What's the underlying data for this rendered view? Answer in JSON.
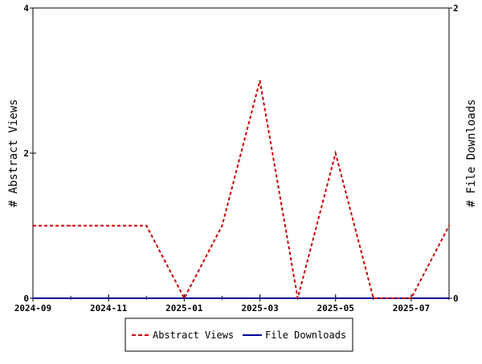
{
  "chart_data": {
    "type": "line",
    "title": "",
    "x": [
      "2024-09",
      "2024-10",
      "2024-11",
      "2024-12",
      "2025-01",
      "2025-02",
      "2025-03",
      "2025-04",
      "2025-05",
      "2025-06",
      "2025-07",
      "2025-08"
    ],
    "x_tick_labels": [
      "2024-09",
      "2024-11",
      "2025-01",
      "2025-03",
      "2025-05",
      "2025-07"
    ],
    "xlim": [
      "2024-09",
      "2025-08"
    ],
    "ylabel_left": "# Abstract Views",
    "ylabel_right": "# File Downloads",
    "ylim_left": [
      0,
      4
    ],
    "ylim_right": [
      0,
      2
    ],
    "y_ticks_left": [
      "0",
      "2",
      "4"
    ],
    "y_ticks_right": [
      "0",
      "2"
    ],
    "grid": false,
    "legend_position": "bottom",
    "series": [
      {
        "name": "Abstract Views",
        "axis": "left",
        "style": "dashed",
        "color": "#cc0000",
        "values": [
          1,
          1,
          1,
          1,
          0,
          1,
          3,
          0,
          2,
          0,
          0,
          1
        ]
      },
      {
        "name": "File Downloads",
        "axis": "right",
        "style": "solid",
        "color": "#000099",
        "values": [
          0,
          0,
          0,
          0,
          0,
          0,
          0,
          0,
          0,
          0,
          0,
          0
        ]
      }
    ]
  }
}
